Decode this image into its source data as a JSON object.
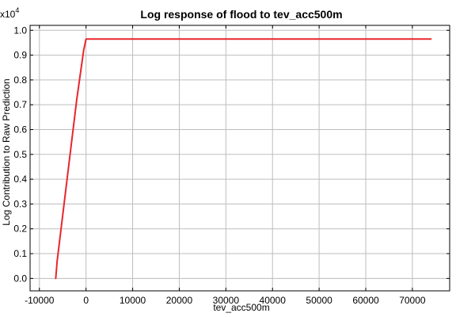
{
  "chart_data": {
    "type": "line",
    "title": "Log response of flood to tev_acc500m",
    "xlabel": "tev_acc500m",
    "ylabel": "Log Contribution to Raw Prediction",
    "y_multiplier_label": "x10",
    "y_multiplier_exponent": "4",
    "xlim": [
      -12000,
      78000
    ],
    "ylim": [
      -0.05,
      1.02
    ],
    "x_ticks": [
      -10000,
      0,
      10000,
      20000,
      30000,
      40000,
      50000,
      60000,
      70000
    ],
    "x_tick_labels": [
      "-10000",
      "0",
      "10000",
      "20000",
      "30000",
      "40000",
      "50000",
      "60000",
      "70000"
    ],
    "y_ticks": [
      0.0,
      0.1,
      0.2,
      0.3,
      0.4,
      0.5,
      0.6,
      0.7,
      0.8,
      0.9,
      1.0
    ],
    "y_tick_labels": [
      "0.0",
      "0.1",
      "0.2",
      "0.3",
      "0.4",
      "0.5",
      "0.6",
      "0.7",
      "0.8",
      "0.9",
      "1.0"
    ],
    "grid": true,
    "series": [
      {
        "color": "#e8262b",
        "x": [
          -6500,
          -6200,
          -2000,
          -500,
          0,
          74000
        ],
        "y": [
          0.0,
          0.07,
          0.72,
          0.92,
          0.965,
          0.965
        ]
      }
    ]
  }
}
